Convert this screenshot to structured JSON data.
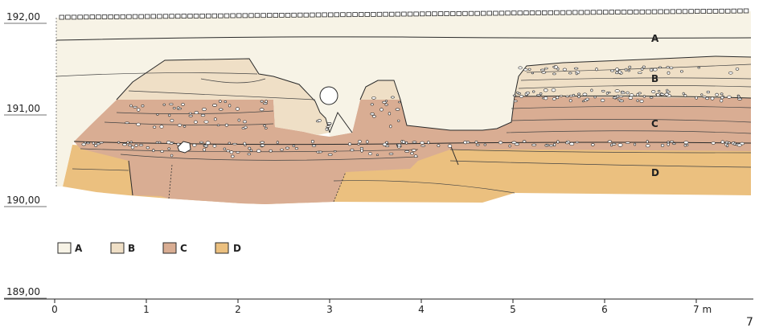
{
  "colors": {
    "A": "#f7f3e6",
    "B": "#efdfc6",
    "C": "#d9ad93",
    "D": "#ebc07f",
    "line": "#2a2a2a"
  },
  "elevations": [
    {
      "value": 192.0,
      "label": "192,00"
    },
    {
      "value": 191.0,
      "label": "191,00"
    },
    {
      "value": 190.0,
      "label": "190,00"
    },
    {
      "value": 189.0,
      "label": "189,00"
    }
  ],
  "x_axis": {
    "ticks": [
      {
        "value": 0,
        "label": "0"
      },
      {
        "value": 1,
        "label": "1"
      },
      {
        "value": 2,
        "label": "2"
      },
      {
        "value": 3,
        "label": "3"
      },
      {
        "value": 4,
        "label": "4"
      },
      {
        "value": 5,
        "label": "5"
      },
      {
        "value": 6,
        "label": "6"
      },
      {
        "value": 7,
        "label": "7 m"
      }
    ]
  },
  "layers": [
    {
      "id": "A",
      "label": "A"
    },
    {
      "id": "B",
      "label": "B"
    },
    {
      "id": "C",
      "label": "C"
    },
    {
      "id": "D",
      "label": "D"
    }
  ],
  "legend": [
    {
      "id": "A",
      "label": "A"
    },
    {
      "id": "B",
      "label": "B"
    },
    {
      "id": "C",
      "label": "C"
    },
    {
      "id": "D",
      "label": "D"
    }
  ],
  "page_number": "7"
}
